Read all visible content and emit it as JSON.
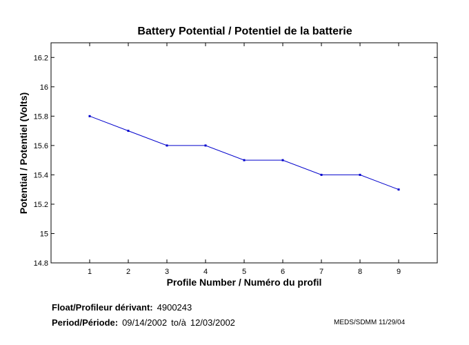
{
  "chart_data": {
    "type": "line",
    "title": "Battery Potential / Potentiel de la batterie",
    "xlabel": "Profile Number / Numéro du profil",
    "ylabel": "Potential / Potentiel (Volts)",
    "xlim": [
      0,
      10
    ],
    "ylim": [
      14.8,
      16.3
    ],
    "xticks": [
      1,
      2,
      3,
      4,
      5,
      6,
      7,
      8,
      9
    ],
    "yticks": [
      14.8,
      15,
      15.2,
      15.4,
      15.6,
      15.8,
      16,
      16.2
    ],
    "ytick_labels": [
      "14.8",
      "15",
      "15.2",
      "15.4",
      "15.6",
      "15.8",
      "16",
      "16.2"
    ],
    "grid": false,
    "series": [
      {
        "x": [
          1,
          2,
          3,
          4,
          5,
          6,
          7,
          8,
          9
        ],
        "values": [
          15.8,
          15.7,
          15.6,
          15.6,
          15.5,
          15.5,
          15.4,
          15.4,
          15.3
        ]
      }
    ]
  },
  "footer": {
    "float_label": "Float/Profileur dérivant:",
    "float_id": "4900243",
    "period_label": "Period/Période:",
    "period_start": "09/14/2002",
    "period_sep": "to/à",
    "period_end": "12/03/2002",
    "credit": "MEDS/SDMM  11/29/04"
  },
  "colors": {
    "line": "#0000cc",
    "axes": "#000000",
    "background": "#ffffff"
  }
}
